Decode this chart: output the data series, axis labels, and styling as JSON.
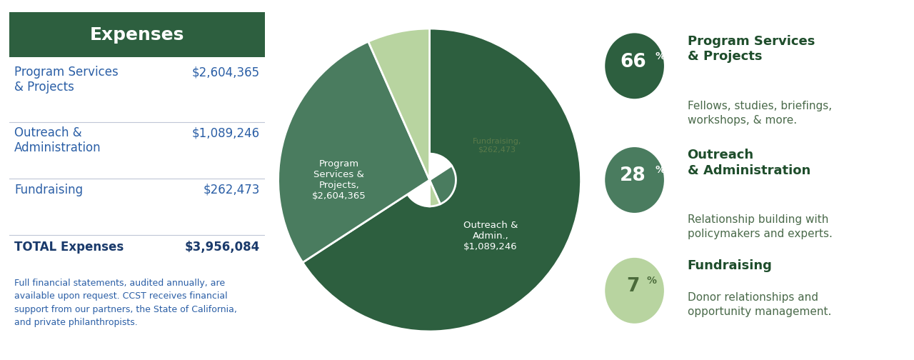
{
  "title": "Expenses",
  "title_bg_color": "#2d5f3f",
  "title_text_color": "#ffffff",
  "table_rows": [
    {
      "label": "Program Services\n& Projects",
      "value": "$2,604,365",
      "bold": false
    },
    {
      "label": "Outreach &\nAdministration",
      "value": "$1,089,246",
      "bold": false
    },
    {
      "label": "Fundraising",
      "value": "$262,473",
      "bold": false
    },
    {
      "label": "TOTAL Expenses",
      "value": "$3,956,084",
      "bold": true
    }
  ],
  "label_color": "#2b5fa6",
  "value_color": "#2b5fa6",
  "total_color": "#1a3a6b",
  "divider_color": "#b0b8cc",
  "footnote": "Full financial statements, audited annually, are\navailable upon request. CCST receives financial\nsupport from our partners, the State of California,\nand private philanthropists.",
  "footnote_color": "#2b5fa6",
  "pie_values": [
    2604365,
    1089246,
    262473
  ],
  "pie_colors": [
    "#2d5f3f",
    "#4a7c5f",
    "#b8d4a0"
  ],
  "pie_label_colors": [
    "#ffffff",
    "#ffffff",
    "#5a7a4a"
  ],
  "pie_label_texts": [
    "Program\nServices &\nProjects,\n$2,604,365",
    "Outreach &\nAdmin.,\n$1,089,246",
    "Fundraising,\n$262,473"
  ],
  "pie_label_fontsizes": [
    9.5,
    9.5,
    8.0
  ],
  "legend_items": [
    {
      "pct": "66",
      "circle_color": "#2d5f3f",
      "text_color": "#ffffff",
      "title": "Program Services\n& Projects",
      "title_color": "#1e4d2b",
      "desc": "Fellows, studies, briefings,\nworkshops, & more.",
      "desc_color": "#4a6a4a"
    },
    {
      "pct": "28",
      "circle_color": "#4a7c5f",
      "text_color": "#ffffff",
      "title": "Outreach\n& Administration",
      "title_color": "#1e4d2b",
      "desc": "Relationship building with\npolicymakers and experts.",
      "desc_color": "#4a6a4a"
    },
    {
      "pct": "7",
      "circle_color": "#b8d4a0",
      "text_color": "#4a6a3a",
      "title": "Fundraising",
      "title_color": "#1e4d2b",
      "desc": "Donor relationships and\nopportunity management.",
      "desc_color": "#4a6a4a"
    }
  ],
  "bg_color": "#ffffff"
}
